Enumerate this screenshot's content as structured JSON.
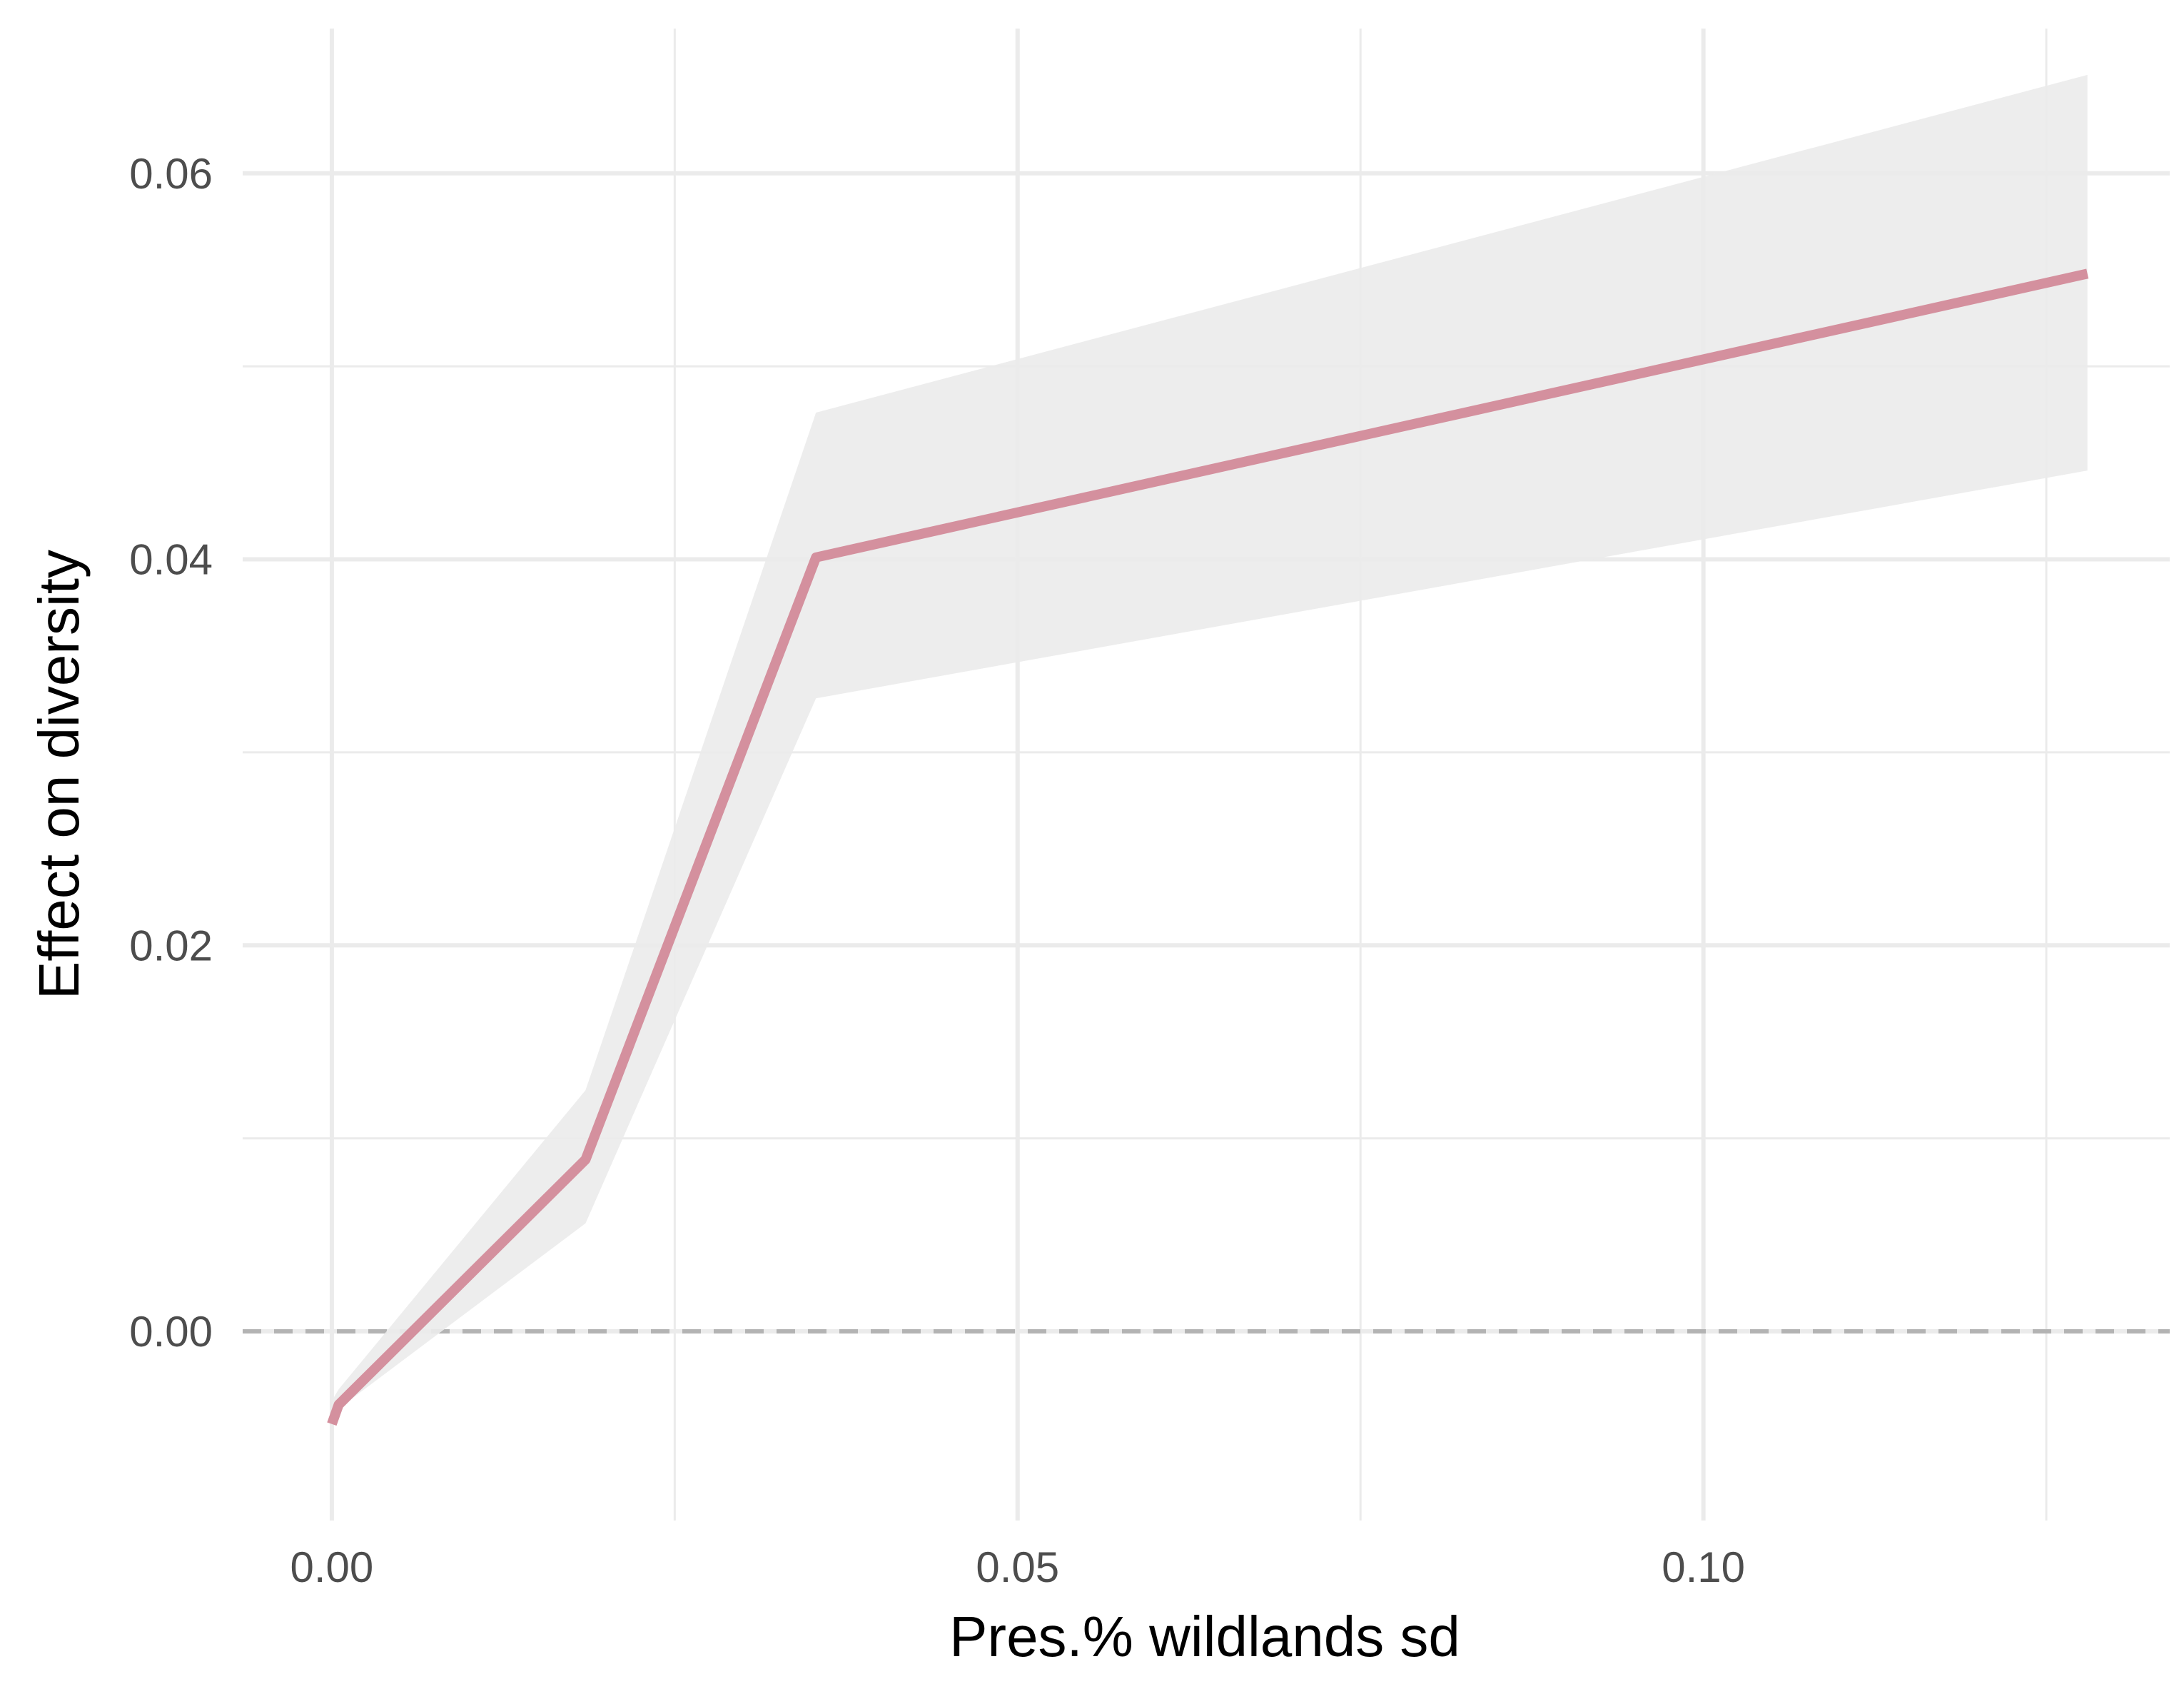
{
  "chart_data": {
    "type": "line",
    "title": "",
    "xlabel": "Pres.% wildlands sd",
    "ylabel": "Effect on diversity",
    "xlim": [
      -0.0065,
      0.134
    ],
    "ylim": [
      -0.0098,
      0.0675
    ],
    "x_ticks": [
      0.0,
      0.05,
      0.1
    ],
    "x_tick_labels": [
      "0.00",
      "0.05",
      "0.10"
    ],
    "x_minor_ticks": [
      0.025,
      0.075,
      0.125
    ],
    "y_ticks": [
      0.0,
      0.02,
      0.04,
      0.06
    ],
    "y_tick_labels": [
      "0.00",
      "0.02",
      "0.04",
      "0.06"
    ],
    "y_minor_ticks": [
      0.01,
      0.03,
      0.05
    ],
    "grid": true,
    "reference_line": {
      "y": 0,
      "style": "dashed",
      "color": "#b3b3b3"
    },
    "series": [
      {
        "color": "#d4909e",
        "x": [
          0.0,
          0.0005,
          0.0185,
          0.0353,
          0.128
        ],
        "y": [
          -0.0048,
          -0.0038,
          0.0089,
          0.0401,
          0.0548
        ],
        "ci_lower": [
          -0.0046,
          -0.004,
          0.0056,
          0.0328,
          0.0446
        ],
        "ci_upper": [
          -0.0036,
          -0.003,
          0.0125,
          0.0476,
          0.0651
        ]
      }
    ],
    "ribbon_color": "#ebebeb"
  }
}
